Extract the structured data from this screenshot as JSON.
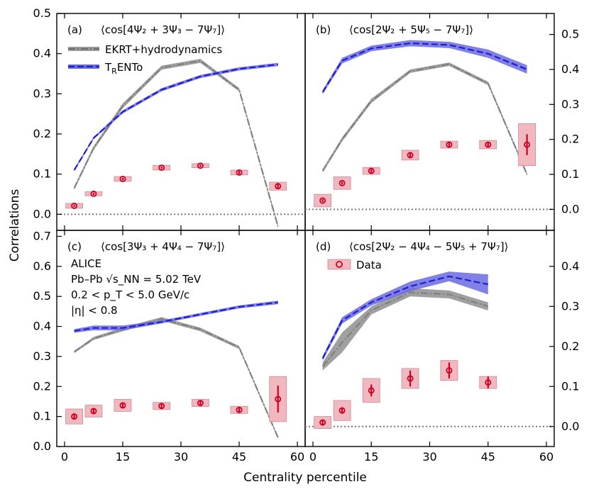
{
  "xlabel": "Centrality percentile",
  "ylabel": "Correlations",
  "colors": {
    "model1": "#808080",
    "model2": "#1f1fd0",
    "model2_band": "#6a6ae0",
    "data": "#cc0022",
    "data_box": "#f2b8bf",
    "zero": "#7a7a7a"
  },
  "legend": {
    "model1": "EKRT+hydrodynamics",
    "model2_main": "T",
    "model2_sub": "R",
    "model2_rest": "ENTo",
    "data": "Data"
  },
  "annotation_lines": [
    "ALICE",
    "Pb–Pb √s_NN = 5.02 TeV",
    "0.2 < p_T < 5.0 GeV/c",
    "|η| < 0.8"
  ],
  "chart_data": [
    {
      "type": "line",
      "panel": "(a)",
      "title": "⟨cos[4Ψ₂ + 3Ψ₃ − 7Ψ₇]⟩",
      "xlim": [
        -2,
        62
      ],
      "ylim": [
        -0.04,
        0.5
      ],
      "yticks": [
        0.0,
        0.1,
        0.2,
        0.3,
        0.4,
        0.5
      ],
      "y_axis_side": "left",
      "xticks": [
        0,
        15,
        30,
        45,
        60
      ],
      "series": [
        {
          "name": "EKRT+hydrodynamics",
          "x": [
            2.5,
            7.5,
            15,
            25,
            35,
            45,
            55
          ],
          "y": [
            0.065,
            0.165,
            0.27,
            0.365,
            0.382,
            0.31,
            -0.03
          ],
          "err": [
            0.004,
            0.005,
            0.006,
            0.005,
            0.005,
            0.004,
            0.004
          ]
        },
        {
          "name": "TRENTo",
          "x": [
            2.5,
            7.5,
            15,
            25,
            35,
            45,
            55
          ],
          "y": [
            0.11,
            0.19,
            0.255,
            0.31,
            0.343,
            0.362,
            0.373
          ],
          "err": [
            0.003,
            0.003,
            0.004,
            0.004,
            0.004,
            0.004,
            0.004
          ]
        },
        {
          "name": "Data",
          "x": [
            2.5,
            7.5,
            15,
            25,
            35,
            45,
            55
          ],
          "y": [
            0.021,
            0.051,
            0.088,
            0.116,
            0.121,
            0.104,
            0.07
          ],
          "stat": [
            0.003,
            0.003,
            0.003,
            0.003,
            0.003,
            0.004,
            0.006
          ],
          "syst": [
            0.006,
            0.005,
            0.006,
            0.006,
            0.005,
            0.006,
            0.01
          ]
        }
      ]
    },
    {
      "type": "line",
      "panel": "(b)",
      "title": "⟨cos[2Ψ₂ + 5Ψ₅ − 7Ψ₇]⟩",
      "xlim": [
        -2,
        62
      ],
      "ylim": [
        -0.06,
        0.56
      ],
      "yticks": [
        0.0,
        0.1,
        0.2,
        0.3,
        0.4,
        0.5
      ],
      "y_axis_side": "right",
      "xticks": [
        0,
        15,
        30,
        45,
        60
      ],
      "series": [
        {
          "name": "EKRT+hydrodynamics",
          "x": [
            2.5,
            7.5,
            15,
            25,
            35,
            45,
            55
          ],
          "y": [
            0.11,
            0.2,
            0.31,
            0.395,
            0.415,
            0.36,
            0.1
          ],
          "err": [
            0.005,
            0.006,
            0.006,
            0.005,
            0.005,
            0.005,
            0.004
          ]
        },
        {
          "name": "TRENTo",
          "x": [
            2.5,
            7.5,
            15,
            25,
            35,
            45,
            55
          ],
          "y": [
            0.335,
            0.425,
            0.46,
            0.475,
            0.47,
            0.445,
            0.4
          ],
          "err": [
            0.006,
            0.008,
            0.008,
            0.009,
            0.009,
            0.012,
            0.012
          ]
        },
        {
          "name": "Data",
          "x": [
            2.5,
            7.5,
            15,
            25,
            35,
            45,
            55
          ],
          "y": [
            0.025,
            0.075,
            0.11,
            0.155,
            0.185,
            0.185,
            0.185
          ],
          "stat": [
            0.004,
            0.004,
            0.005,
            0.006,
            0.006,
            0.008,
            0.03
          ],
          "syst": [
            0.018,
            0.018,
            0.01,
            0.014,
            0.01,
            0.012,
            0.06
          ]
        }
      ]
    },
    {
      "type": "line",
      "panel": "(c)",
      "title": "⟨cos[3Ψ₃ + 4Ψ₄ − 7Ψ₇]⟩",
      "xlim": [
        -2,
        62
      ],
      "ylim": [
        0.0,
        0.72
      ],
      "yticks": [
        0.0,
        0.1,
        0.2,
        0.3,
        0.4,
        0.5,
        0.6,
        0.7
      ],
      "y_axis_side": "left",
      "xticks": [
        0,
        15,
        30,
        45,
        60
      ],
      "series": [
        {
          "name": "EKRT+hydrodynamics",
          "x": [
            2.5,
            7.5,
            15,
            25,
            35,
            45,
            55
          ],
          "y": [
            0.315,
            0.36,
            0.39,
            0.425,
            0.39,
            0.33,
            0.03
          ],
          "err": [
            0.004,
            0.005,
            0.006,
            0.006,
            0.006,
            0.005,
            0.004
          ]
        },
        {
          "name": "TRENTo",
          "x": [
            2.5,
            7.5,
            15,
            25,
            35,
            45,
            55
          ],
          "y": [
            0.385,
            0.395,
            0.395,
            0.415,
            0.44,
            0.465,
            0.48
          ],
          "err": [
            0.006,
            0.008,
            0.008,
            0.005,
            0.005,
            0.005,
            0.006
          ]
        },
        {
          "name": "Data",
          "x": [
            2.5,
            7.5,
            15,
            25,
            35,
            45,
            55
          ],
          "y": [
            0.1,
            0.118,
            0.137,
            0.135,
            0.145,
            0.122,
            0.158
          ],
          "stat": [
            0.008,
            0.008,
            0.008,
            0.007,
            0.008,
            0.01,
            0.045
          ],
          "syst": [
            0.025,
            0.02,
            0.02,
            0.012,
            0.012,
            0.012,
            0.075
          ]
        }
      ]
    },
    {
      "type": "line",
      "panel": "(d)",
      "title": "⟨cos[2Ψ₂ − 4Ψ₄ − 5Ψ₅ + 7Ψ₇]⟩",
      "xlim": [
        -2,
        62
      ],
      "ylim": [
        -0.05,
        0.49
      ],
      "yticks": [
        0.0,
        0.1,
        0.2,
        0.3,
        0.4
      ],
      "y_axis_side": "right",
      "xticks": [
        0,
        15,
        30,
        45,
        60
      ],
      "series": [
        {
          "name": "EKRT+hydrodynamics",
          "x": [
            2.5,
            7.5,
            15,
            25,
            35,
            45
          ],
          "y": [
            0.15,
            0.21,
            0.29,
            0.335,
            0.33,
            0.3
          ],
          "err": [
            0.01,
            0.025,
            0.01,
            0.01,
            0.01,
            0.01
          ]
        },
        {
          "name": "TRENTo",
          "x": [
            2.5,
            7.5,
            15,
            25,
            35,
            45
          ],
          "y": [
            0.17,
            0.265,
            0.31,
            0.35,
            0.375,
            0.355
          ],
          "err": [
            0.006,
            0.008,
            0.008,
            0.012,
            0.012,
            0.025
          ]
        },
        {
          "name": "Data",
          "x": [
            2.5,
            7.5,
            15,
            25,
            35,
            45
          ],
          "y": [
            0.01,
            0.04,
            0.09,
            0.12,
            0.14,
            0.11
          ],
          "stat": [
            0.006,
            0.008,
            0.015,
            0.02,
            0.02,
            0.015
          ],
          "syst": [
            0.015,
            0.025,
            0.03,
            0.025,
            0.025,
            0.015
          ]
        }
      ]
    }
  ]
}
